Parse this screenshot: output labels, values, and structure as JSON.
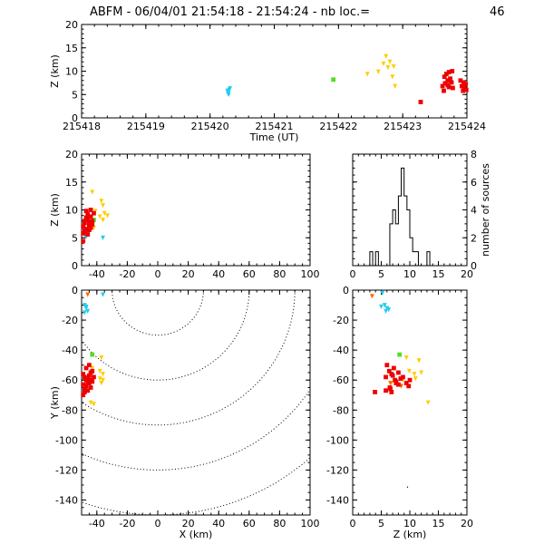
{
  "title": {
    "prefix": "ABFM - 06/04/01 21:54:18 - 21:54:24 - nb loc.=",
    "count": "46"
  },
  "colors": {
    "cyan": "#22ccee",
    "green": "#55dd22",
    "yellow": "#ffcc00",
    "orange": "#ff6600",
    "red": "#ee0000"
  },
  "chart_data": [
    {
      "id": "time_z",
      "type": "scatter",
      "xlabel": "Time (UT)",
      "ylabel": "Z (km)",
      "xlim": [
        215418,
        215424
      ],
      "ylim": [
        0,
        20
      ],
      "xticks": [
        "215418",
        "215419",
        "215420",
        "215421",
        "215422",
        "215423",
        "215424"
      ],
      "yticks": [
        "0",
        "5",
        "10",
        "15",
        "20"
      ],
      "series": [
        {
          "color": "cyan",
          "points": [
            [
              215420.28,
              5.2
            ],
            [
              215420.29,
              5.6
            ],
            [
              215420.3,
              6.0
            ],
            [
              215420.27,
              5.8
            ],
            [
              215420.31,
              6.3
            ],
            [
              215420.29,
              5.0
            ]
          ]
        },
        {
          "color": "green",
          "points": [
            [
              215421.92,
              8.2
            ]
          ]
        },
        {
          "color": "yellow",
          "points": [
            [
              215422.45,
              9.4
            ],
            [
              215422.62,
              9.9
            ],
            [
              215422.74,
              13.2
            ],
            [
              215422.77,
              10.8
            ],
            [
              215422.8,
              12.0
            ],
            [
              215422.84,
              8.8
            ],
            [
              215422.86,
              11.0
            ],
            [
              215422.88,
              6.8
            ],
            [
              215422.7,
              11.6
            ]
          ]
        },
        {
          "color": "red",
          "points": [
            [
              215423.28,
              3.4
            ],
            [
              215423.62,
              6.8
            ],
            [
              215423.65,
              8.8
            ],
            [
              215423.66,
              7.4
            ],
            [
              215423.68,
              9.4
            ],
            [
              215423.7,
              7.0
            ],
            [
              215423.7,
              8.0
            ],
            [
              215423.72,
              9.8
            ],
            [
              215423.72,
              6.6
            ],
            [
              215423.74,
              8.4
            ],
            [
              215423.76,
              7.6
            ],
            [
              215423.77,
              10.0
            ],
            [
              215423.78,
              6.4
            ],
            [
              215423.64,
              5.8
            ],
            [
              215423.9,
              8.0
            ],
            [
              215423.92,
              6.8
            ],
            [
              215423.94,
              5.8
            ],
            [
              215423.96,
              6.5
            ],
            [
              215423.98,
              7.2
            ],
            [
              215423.99,
              6.0
            ],
            [
              215423.95,
              7.6
            ]
          ]
        }
      ]
    },
    {
      "id": "x_z",
      "type": "scatter",
      "xlabel": "",
      "ylabel": "Z (km)",
      "xlim": [
        -50,
        100
      ],
      "ylim": [
        0,
        20
      ],
      "xticks": [
        "-40",
        "-20",
        "0",
        "20",
        "40",
        "60",
        "80",
        "100"
      ],
      "yticks": [
        "0",
        "5",
        "10",
        "15",
        "20"
      ],
      "series": [
        {
          "color": "cyan",
          "points": [
            [
              -48,
              5.5
            ],
            [
              -47,
              5.2
            ],
            [
              -46,
              6.0
            ],
            [
              -48,
              5.8
            ],
            [
              -47,
              6.3
            ],
            [
              -36,
              5.0
            ]
          ]
        },
        {
          "color": "green",
          "points": [
            [
              -42,
              8.2
            ]
          ]
        },
        {
          "color": "yellow",
          "points": [
            [
              -37,
              11.6
            ],
            [
              -36,
              10.8
            ],
            [
              -35,
              9.4
            ],
            [
              -33,
              9.0
            ],
            [
              -38,
              8.8
            ],
            [
              -43,
              13.2
            ],
            [
              -41,
              9.8
            ],
            [
              -36,
              8.2
            ],
            [
              -42,
              6.8
            ]
          ]
        },
        {
          "color": "red",
          "points": [
            [
              -49,
              7.0
            ],
            [
              -48,
              8.0
            ],
            [
              -47,
              9.8
            ],
            [
              -46,
              8.4
            ],
            [
              -45,
              7.2
            ],
            [
              -44,
              10.0
            ],
            [
              -47,
              6.6
            ],
            [
              -48,
              7.6
            ],
            [
              -46,
              9.2
            ],
            [
              -45,
              6.4
            ],
            [
              -44,
              8.8
            ],
            [
              -43,
              7.4
            ],
            [
              -42,
              9.4
            ],
            [
              -49,
              5.8
            ],
            [
              -48,
              6.2
            ],
            [
              -46,
              5.6
            ],
            [
              -44,
              6.8
            ],
            [
              -43,
              8.0
            ],
            [
              -45,
              7.8
            ],
            [
              -47,
              8.6
            ],
            [
              -49,
              4.4
            ]
          ]
        }
      ]
    },
    {
      "id": "z_hist",
      "type": "histogram",
      "xlabel": "",
      "ylabel": "number of sources",
      "xlim": [
        0,
        20
      ],
      "ylim": [
        0,
        8
      ],
      "xticks": [
        "0",
        "5",
        "10",
        "15",
        "20"
      ],
      "yticks": [
        "0",
        "2",
        "4",
        "6",
        "8"
      ],
      "bin_width": 0.5,
      "bin_start": 0,
      "counts": [
        0,
        0,
        0,
        0,
        0,
        0,
        1,
        0,
        1,
        0,
        0,
        0,
        0,
        3,
        4,
        3,
        5,
        7,
        5,
        4,
        2,
        1,
        1,
        0,
        0,
        0,
        1,
        0,
        0,
        0,
        0,
        0,
        0,
        0,
        0,
        0,
        0,
        0,
        0,
        0
      ]
    },
    {
      "id": "x_y",
      "type": "scatter",
      "xlabel": "X (km)",
      "ylabel": "Y (km)",
      "xlim": [
        -50,
        100
      ],
      "ylim": [
        -150,
        0
      ],
      "xticks": [
        "-40",
        "-20",
        "0",
        "20",
        "40",
        "60",
        "80",
        "100"
      ],
      "yticks": [
        "0",
        "-20",
        "-40",
        "-60",
        "-80",
        "-100",
        "-120",
        "-140"
      ],
      "ring_center": [
        0,
        0
      ],
      "rings": [
        30,
        60,
        90,
        120,
        150
      ],
      "series": [
        {
          "color": "cyan",
          "points": [
            [
              -48,
              -10
            ],
            [
              -47,
              -12
            ],
            [
              -46,
              -14
            ],
            [
              -48,
              -15
            ],
            [
              -47,
              -11
            ],
            [
              -36,
              -3
            ]
          ]
        },
        {
          "color": "green",
          "points": [
            [
              -43,
              -43
            ]
          ]
        },
        {
          "color": "yellow",
          "points": [
            [
              -37,
              -45
            ],
            [
              -38,
              -54
            ],
            [
              -36,
              -56
            ],
            [
              -38,
              -59
            ],
            [
              -36,
              -60
            ],
            [
              -37,
              -62
            ],
            [
              -43,
              -52
            ],
            [
              -44,
              -75
            ],
            [
              -42,
              -76
            ]
          ]
        },
        {
          "color": "orange",
          "points": [
            [
              -46,
              -3
            ]
          ]
        },
        {
          "color": "red",
          "points": [
            [
              -49,
              -56
            ],
            [
              -48,
              -58
            ],
            [
              -47,
              -60
            ],
            [
              -46,
              -62
            ],
            [
              -45,
              -57
            ],
            [
              -44,
              -55
            ],
            [
              -47,
              -64
            ],
            [
              -48,
              -66
            ],
            [
              -46,
              -59
            ],
            [
              -45,
              -62
            ],
            [
              -44,
              -60
            ],
            [
              -43,
              -54
            ],
            [
              -42,
              -58
            ],
            [
              -49,
              -63
            ],
            [
              -48,
              -68
            ],
            [
              -46,
              -67
            ],
            [
              -44,
              -65
            ],
            [
              -47,
              -52
            ],
            [
              -45,
              -50
            ],
            [
              -43,
              -61
            ],
            [
              -49,
              -70
            ]
          ]
        }
      ]
    },
    {
      "id": "z_y",
      "type": "scatter",
      "xlabel": "Z (km)",
      "ylabel": "",
      "xlim": [
        0,
        20
      ],
      "ylim": [
        -150,
        0
      ],
      "xticks": [
        "0",
        "5",
        "10",
        "15",
        "20"
      ],
      "yticks": [
        "0",
        "-20",
        "-40",
        "-60",
        "-80",
        "-100",
        "-120",
        "-140"
      ],
      "series": [
        {
          "color": "cyan",
          "points": [
            [
              5.2,
              -2
            ],
            [
              5.6,
              -10
            ],
            [
              6.0,
              -12
            ],
            [
              5.8,
              -14
            ],
            [
              6.3,
              -13
            ],
            [
              5.0,
              -11
            ]
          ]
        },
        {
          "color": "green",
          "points": [
            [
              8.2,
              -43
            ]
          ]
        },
        {
          "color": "yellow",
          "points": [
            [
              9.4,
              -45
            ],
            [
              9.9,
              -54
            ],
            [
              13.2,
              -75
            ],
            [
              10.8,
              -56
            ],
            [
              12.0,
              -55
            ],
            [
              8.8,
              -60
            ],
            [
              11.0,
              -59
            ],
            [
              6.8,
              -62
            ],
            [
              11.6,
              -47
            ]
          ]
        },
        {
          "color": "orange",
          "points": [
            [
              3.4,
              -4
            ],
            [
              8.5,
              -64
            ],
            [
              6.6,
              -62
            ]
          ]
        },
        {
          "color": "red",
          "points": [
            [
              6.8,
              -56
            ],
            [
              8.8,
              -58
            ],
            [
              7.4,
              -60
            ],
            [
              9.4,
              -62
            ],
            [
              7.0,
              -57
            ],
            [
              8.0,
              -55
            ],
            [
              9.8,
              -64
            ],
            [
              6.6,
              -66
            ],
            [
              8.4,
              -59
            ],
            [
              7.6,
              -62
            ],
            [
              10.0,
              -60
            ],
            [
              6.4,
              -54
            ],
            [
              5.8,
              -58
            ],
            [
              8.0,
              -63
            ],
            [
              6.8,
              -68
            ],
            [
              5.8,
              -67
            ],
            [
              6.5,
              -65
            ],
            [
              7.2,
              -52
            ],
            [
              6.0,
              -50
            ],
            [
              7.6,
              -61
            ],
            [
              3.9,
              -68
            ]
          ]
        }
      ]
    }
  ]
}
